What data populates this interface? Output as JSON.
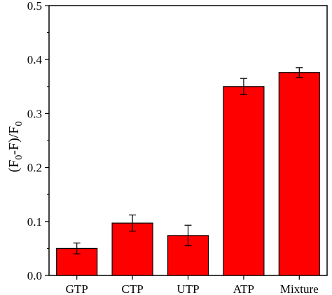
{
  "chart_data": {
    "type": "bar",
    "categories": [
      "GTP",
      "CTP",
      "UTP",
      "ATP",
      "Mixture"
    ],
    "values": [
      0.05,
      0.097,
      0.074,
      0.35,
      0.376
    ],
    "errors": [
      0.01,
      0.015,
      0.019,
      0.015,
      0.009
    ],
    "title": "",
    "xlabel": "",
    "ylabel": {
      "main": "(F",
      "sub1": "0",
      "mid": "-F)/F",
      "sub2": "0"
    },
    "ylim": [
      0,
      0.5
    ],
    "yticks": [
      "0.0",
      "0.1",
      "0.2",
      "0.3",
      "0.4",
      "0.5"
    ],
    "grid": false,
    "legend": "none",
    "colors": {
      "bar": "#ff0000",
      "stroke": "#000000"
    }
  }
}
